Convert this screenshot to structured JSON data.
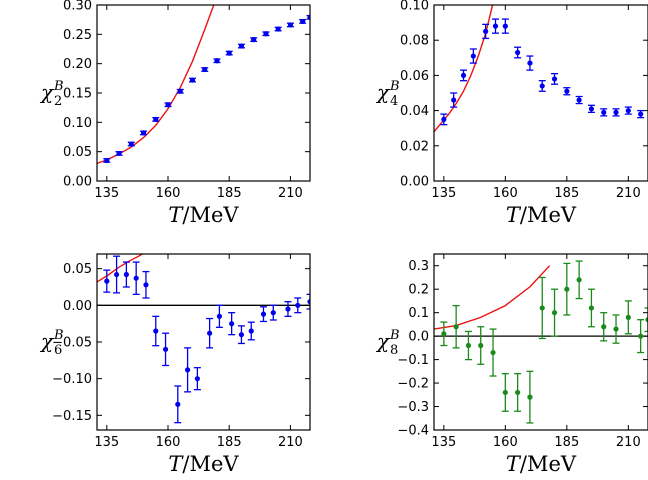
{
  "chart_data": [
    {
      "type": "scatter",
      "ylabel": "χ",
      "ylabel_sup": "B",
      "ylabel_sub": "2",
      "xlabel_var": "T",
      "xlabel_unit": "/MeV",
      "xlim": [
        131,
        218
      ],
      "ylim": [
        0,
        0.3
      ],
      "xticks": [
        "135",
        "160",
        "185",
        "210"
      ],
      "yticks": [
        "0.00",
        "0.05",
        "0.10",
        "0.15",
        "0.20",
        "0.25",
        "0.30"
      ],
      "yticks_vals": [
        0,
        0.05,
        0.1,
        0.15,
        0.2,
        0.25,
        0.3
      ],
      "zero_line": false,
      "color": "#0000ee",
      "series": [
        {
          "x": [
            135,
            140,
            145,
            150,
            155,
            160,
            165,
            170,
            175,
            180,
            185,
            190,
            195,
            200,
            205,
            210,
            215,
            218
          ],
          "y": [
            0.035,
            0.047,
            0.063,
            0.082,
            0.105,
            0.13,
            0.153,
            0.172,
            0.19,
            0.205,
            0.218,
            0.23,
            0.241,
            0.251,
            0.259,
            0.266,
            0.272,
            0.279
          ],
          "err": [
            0.003,
            0.003,
            0.003,
            0.003,
            0.003,
            0.003,
            0.003,
            0.003,
            0.003,
            0.003,
            0.003,
            0.003,
            0.003,
            0.003,
            0.003,
            0.003,
            0.003,
            0.003
          ]
        }
      ],
      "curve": {
        "color": "#ee1111",
        "x": [
          131,
          135,
          140,
          145,
          150,
          155,
          160,
          165,
          170,
          175,
          180
        ],
        "y": [
          0.03,
          0.036,
          0.046,
          0.058,
          0.074,
          0.095,
          0.123,
          0.159,
          0.204,
          0.258,
          0.315
        ]
      }
    },
    {
      "type": "scatter",
      "ylabel": "χ",
      "ylabel_sup": "B",
      "ylabel_sub": "4",
      "xlabel_var": "T",
      "xlabel_unit": "/MeV",
      "xlim": [
        131,
        218
      ],
      "ylim": [
        0,
        0.1
      ],
      "xticks": [
        "135",
        "160",
        "185",
        "210"
      ],
      "yticks": [
        "0.00",
        "0.02",
        "0.04",
        "0.06",
        "0.08",
        "0.10"
      ],
      "yticks_vals": [
        0,
        0.02,
        0.04,
        0.06,
        0.08,
        0.1
      ],
      "zero_line": false,
      "color": "#0000ee",
      "series": [
        {
          "x": [
            135,
            139,
            143,
            147,
            152,
            156,
            160,
            165,
            170,
            175,
            180,
            185,
            190,
            195,
            200,
            205,
            210,
            215
          ],
          "y": [
            0.035,
            0.046,
            0.06,
            0.071,
            0.085,
            0.088,
            0.088,
            0.073,
            0.067,
            0.054,
            0.058,
            0.051,
            0.046,
            0.041,
            0.039,
            0.039,
            0.04,
            0.038
          ],
          "err": [
            0.003,
            0.004,
            0.003,
            0.004,
            0.004,
            0.004,
            0.004,
            0.003,
            0.004,
            0.003,
            0.003,
            0.002,
            0.002,
            0.002,
            0.002,
            0.002,
            0.002,
            0.002
          ]
        }
      ],
      "curve": {
        "color": "#ee1111",
        "x": [
          131,
          134,
          137,
          140,
          143,
          146,
          149,
          152,
          155
        ],
        "y": [
          0.028,
          0.033,
          0.038,
          0.044,
          0.051,
          0.06,
          0.071,
          0.084,
          0.101
        ]
      }
    },
    {
      "type": "scatter",
      "ylabel": "χ",
      "ylabel_sup": "B",
      "ylabel_sub": "6",
      "xlabel_var": "T",
      "xlabel_unit": "/MeV",
      "xlim": [
        131,
        218
      ],
      "ylim": [
        -0.17,
        0.07
      ],
      "xticks": [
        "135",
        "160",
        "185",
        "210"
      ],
      "yticks": [
        "−0.15",
        "−0.10",
        "−0.05",
        "0.00",
        "0.05"
      ],
      "yticks_vals": [
        -0.15,
        -0.1,
        -0.05,
        0,
        0.05
      ],
      "zero_line": true,
      "color": "#0000ee",
      "series": [
        {
          "x": [
            135,
            139,
            143,
            147,
            151,
            155,
            159,
            164,
            168,
            172,
            177,
            181,
            186,
            190,
            194,
            199,
            203,
            209,
            213,
            218
          ],
          "y": [
            0.033,
            0.042,
            0.042,
            0.037,
            0.028,
            -0.035,
            -0.06,
            -0.135,
            -0.088,
            -0.1,
            -0.038,
            -0.015,
            -0.025,
            -0.04,
            -0.035,
            -0.012,
            -0.01,
            -0.005,
            0.0,
            0.005
          ],
          "err": [
            0.015,
            0.025,
            0.017,
            0.022,
            0.018,
            0.02,
            0.022,
            0.025,
            0.03,
            0.015,
            0.02,
            0.015,
            0.015,
            0.012,
            0.012,
            0.01,
            0.01,
            0.01,
            0.01,
            0.01
          ]
        }
      ],
      "curve": {
        "color": "#ee1111",
        "x": [
          131,
          135,
          140,
          144,
          148,
          151
        ],
        "y": [
          0.032,
          0.04,
          0.052,
          0.06,
          0.067,
          0.073
        ]
      }
    },
    {
      "type": "scatter",
      "ylabel": "χ",
      "ylabel_sup": "B",
      "ylabel_sub": "8",
      "xlabel_var": "T",
      "xlabel_unit": "/MeV",
      "xlim": [
        131,
        218
      ],
      "ylim": [
        -0.4,
        0.35
      ],
      "xticks": [
        "135",
        "160",
        "185",
        "210"
      ],
      "yticks": [
        "−0.4",
        "−0.3",
        "−0.2",
        "−0.1",
        "0.0",
        "0.1",
        "0.2",
        "0.3"
      ],
      "yticks_vals": [
        -0.4,
        -0.3,
        -0.2,
        -0.1,
        0,
        0.1,
        0.2,
        0.3
      ],
      "zero_line": true,
      "color": "#1a8a1a",
      "series": [
        {
          "x": [
            135,
            140,
            145,
            150,
            155,
            160,
            165,
            170,
            175,
            180,
            185,
            190,
            195,
            200,
            205,
            210,
            215,
            218
          ],
          "y": [
            0.01,
            0.04,
            -0.04,
            -0.04,
            -0.07,
            -0.24,
            -0.24,
            -0.26,
            0.12,
            0.1,
            0.2,
            0.24,
            0.12,
            0.04,
            0.03,
            0.08,
            0.0,
            0.07
          ],
          "err": [
            0.05,
            0.09,
            0.06,
            0.08,
            0.1,
            0.08,
            0.08,
            0.11,
            0.13,
            0.1,
            0.11,
            0.08,
            0.08,
            0.06,
            0.06,
            0.07,
            0.07,
            0.05
          ]
        }
      ],
      "curve": {
        "color": "#ee1111",
        "x": [
          131,
          140,
          150,
          160,
          170,
          178
        ],
        "y": [
          0.03,
          0.045,
          0.08,
          0.13,
          0.21,
          0.3
        ]
      }
    }
  ]
}
